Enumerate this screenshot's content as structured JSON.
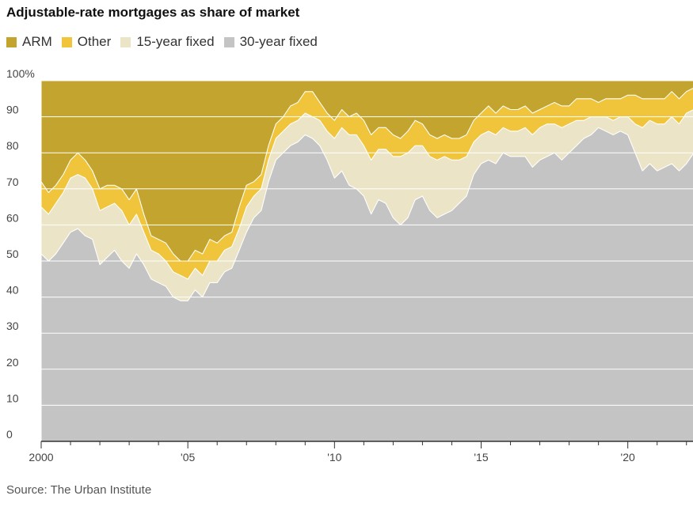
{
  "chart_data": {
    "type": "area",
    "stacked": true,
    "title": "Adjustable-rate mortgages as share of market",
    "source": "Source: The Urban Institute",
    "y_ticks": [
      "100%",
      "90",
      "80",
      "70",
      "60",
      "50",
      "40",
      "30",
      "20",
      "10",
      "0"
    ],
    "y_tick_values": [
      100,
      90,
      80,
      70,
      60,
      50,
      40,
      30,
      20,
      10,
      0
    ],
    "x_ticks": [
      "2000",
      "'05",
      "'10",
      "'15",
      "'20"
    ],
    "x_tick_values": [
      2000,
      2005,
      2010,
      2015,
      2020
    ],
    "xlim": [
      2000,
      2022.25
    ],
    "ylim": [
      0,
      100
    ],
    "grid": true,
    "legend_position": "top-left",
    "x": [
      2000.0,
      2000.25,
      2000.5,
      2000.75,
      2001.0,
      2001.25,
      2001.5,
      2001.75,
      2002.0,
      2002.25,
      2002.5,
      2002.75,
      2003.0,
      2003.25,
      2003.5,
      2003.75,
      2004.0,
      2004.25,
      2004.5,
      2004.75,
      2005.0,
      2005.25,
      2005.5,
      2005.75,
      2006.0,
      2006.25,
      2006.5,
      2006.75,
      2007.0,
      2007.25,
      2007.5,
      2007.75,
      2008.0,
      2008.25,
      2008.5,
      2008.75,
      2009.0,
      2009.25,
      2009.5,
      2009.75,
      2010.0,
      2010.25,
      2010.5,
      2010.75,
      2011.0,
      2011.25,
      2011.5,
      2011.75,
      2012.0,
      2012.25,
      2012.5,
      2012.75,
      2013.0,
      2013.25,
      2013.5,
      2013.75,
      2014.0,
      2014.25,
      2014.5,
      2014.75,
      2015.0,
      2015.25,
      2015.5,
      2015.75,
      2016.0,
      2016.25,
      2016.5,
      2016.75,
      2017.0,
      2017.25,
      2017.5,
      2017.75,
      2018.0,
      2018.25,
      2018.5,
      2018.75,
      2019.0,
      2019.25,
      2019.5,
      2019.75,
      2020.0,
      2020.25,
      2020.5,
      2020.75,
      2021.0,
      2021.25,
      2021.5,
      2021.75,
      2022.0,
      2022.25
    ],
    "series": [
      {
        "name": "30-year fixed",
        "color": "#c4c4c4",
        "values": [
          52,
          50,
          52,
          55,
          58,
          59,
          57,
          56,
          49,
          51,
          53,
          50,
          48,
          52,
          49,
          45,
          44,
          43,
          40,
          39,
          39,
          42,
          40,
          44,
          44,
          47,
          48,
          53,
          58,
          62,
          64,
          72,
          78,
          80,
          82,
          83,
          85,
          84,
          82,
          78,
          73,
          75,
          71,
          70,
          68,
          63,
          67,
          66,
          62,
          60,
          62,
          67,
          68,
          64,
          62,
          63,
          64,
          66,
          68,
          74,
          77,
          78,
          77,
          80,
          79,
          79,
          79,
          76,
          78,
          79,
          80,
          78,
          80,
          82,
          84,
          85,
          87,
          86,
          85,
          86,
          85,
          80,
          75,
          77,
          75,
          76,
          77,
          75,
          77,
          80
        ]
      },
      {
        "name": "15-year fixed",
        "color": "#ece4c6",
        "values": [
          13,
          13,
          14,
          14,
          15,
          15,
          16,
          14,
          15,
          14,
          13,
          14,
          12,
          11,
          9,
          8,
          8,
          7,
          7,
          7,
          6,
          6,
          6,
          6,
          6,
          6,
          6,
          6,
          7,
          6,
          6,
          6,
          6,
          6,
          6,
          6,
          6,
          6,
          7,
          8,
          11,
          12,
          14,
          15,
          14,
          15,
          14,
          15,
          17,
          19,
          18,
          15,
          14,
          15,
          16,
          16,
          14,
          12,
          11,
          9,
          8,
          8,
          8,
          7,
          7,
          7,
          8,
          9,
          9,
          9,
          8,
          9,
          8,
          7,
          5,
          5,
          3,
          4,
          4,
          4,
          5,
          8,
          12,
          12,
          13,
          12,
          13,
          13,
          14,
          12
        ]
      },
      {
        "name": "Other",
        "color": "#f0c53b",
        "values": [
          7,
          6,
          5,
          5,
          5,
          6,
          5,
          5,
          6,
          6,
          5,
          6,
          7,
          7,
          5,
          4,
          4,
          5,
          5,
          4,
          5,
          5,
          6,
          6,
          5,
          4,
          4,
          6,
          6,
          4,
          4,
          4,
          4,
          4,
          5,
          5,
          6,
          7,
          5,
          5,
          5,
          5,
          5,
          6,
          7,
          7,
          6,
          6,
          6,
          5,
          6,
          7,
          6,
          6,
          6,
          6,
          6,
          6,
          6,
          6,
          6,
          7,
          6,
          6,
          6,
          6,
          6,
          6,
          5,
          5,
          6,
          6,
          5,
          6,
          6,
          5,
          4,
          5,
          6,
          5,
          6,
          8,
          8,
          6,
          7,
          7,
          7,
          7,
          6,
          6
        ]
      },
      {
        "name": "ARM",
        "color": "#c2a42e",
        "values": [
          28,
          31,
          29,
          26,
          22,
          20,
          22,
          25,
          30,
          29,
          29,
          30,
          33,
          30,
          37,
          43,
          44,
          45,
          48,
          50,
          50,
          47,
          48,
          44,
          45,
          43,
          42,
          35,
          29,
          28,
          26,
          18,
          12,
          10,
          7,
          6,
          3,
          3,
          6,
          9,
          11,
          8,
          10,
          9,
          11,
          15,
          13,
          13,
          15,
          16,
          14,
          11,
          12,
          15,
          16,
          15,
          16,
          16,
          15,
          11,
          9,
          7,
          9,
          7,
          8,
          8,
          7,
          9,
          8,
          7,
          6,
          7,
          7,
          5,
          5,
          5,
          6,
          5,
          5,
          5,
          4,
          4,
          5,
          5,
          5,
          5,
          3,
          5,
          3,
          2
        ]
      }
    ]
  }
}
